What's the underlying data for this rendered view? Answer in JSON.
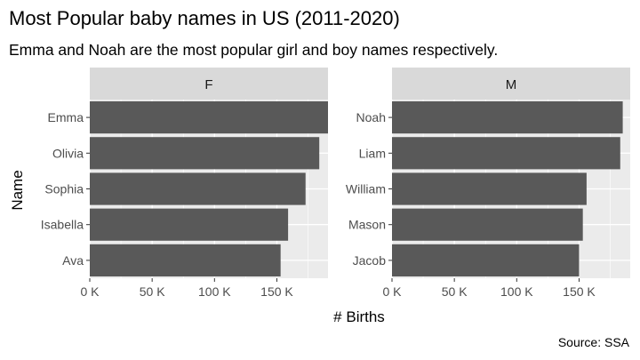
{
  "chart_data": {
    "type": "bar",
    "orientation": "horizontal",
    "title": "Most Popular baby names in US (2011-2020)",
    "subtitle": "Emma and Noah are the most popular girl and boy names respectively.",
    "xlabel": "# Births",
    "ylabel": "Name",
    "caption": "Source: SSA",
    "xlim": [
      0,
      191000
    ],
    "x_ticks": [
      0,
      50000,
      100000,
      150000
    ],
    "x_tick_labels": [
      "0 K",
      "50 K",
      "100 K",
      "150 K"
    ],
    "grid": true,
    "bar_color": "#595959",
    "panel_background": "#ebebeb",
    "strip_background": "#d9d9d9",
    "facets": [
      {
        "label": "F",
        "categories": [
          "Emma",
          "Olivia",
          "Sophia",
          "Isabella",
          "Ava"
        ],
        "values": [
          193000,
          184000,
          173000,
          159000,
          153000
        ]
      },
      {
        "label": "M",
        "categories": [
          "Noah",
          "Liam",
          "William",
          "Mason",
          "Jacob"
        ],
        "values": [
          185000,
          183000,
          156000,
          153000,
          150000
        ]
      }
    ]
  }
}
